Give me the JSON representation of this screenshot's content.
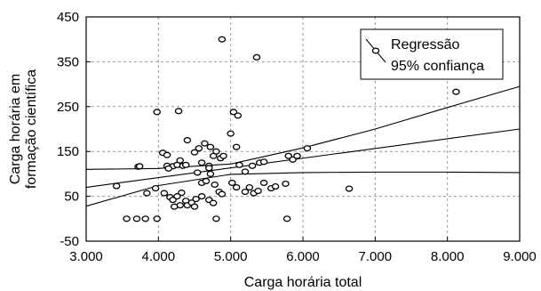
{
  "chart_data": {
    "type": "scatter",
    "xlabel": "Carga horária total",
    "ylabel_lines": [
      "Carga horária em",
      "formação científica"
    ],
    "xlim": [
      3000,
      9000
    ],
    "ylim": [
      -50,
      450
    ],
    "xticks": [
      3000,
      4000,
      5000,
      6000,
      7000,
      8000,
      9000
    ],
    "xtick_labels": [
      "3.000",
      "4.000",
      "5.000",
      "6.000",
      "7.000",
      "8.000",
      "9.000"
    ],
    "yticks": [
      -50,
      50,
      150,
      250,
      350,
      450
    ],
    "ytick_labels": [
      "-50",
      "50",
      "150",
      "250",
      "350",
      "450"
    ],
    "grid": true,
    "legend": {
      "position": "top-right",
      "entries": [
        "Regressão",
        "95% confiança"
      ]
    },
    "regression": {
      "x": [
        3000,
        9000
      ],
      "y": [
        70,
        200
      ]
    },
    "confidence_upper": {
      "x": [
        3000,
        4000,
        5000,
        6000,
        7000,
        8000,
        9000
      ],
      "y": [
        110,
        112,
        122,
        158,
        200,
        248,
        295
      ]
    },
    "confidence_lower": {
      "x": [
        3000,
        4000,
        5000,
        6000,
        7000,
        8000,
        9000
      ],
      "y": [
        28,
        74,
        99,
        103,
        104,
        104,
        103
      ]
    },
    "points": [
      [
        3700,
        0
      ],
      [
        3820,
        0
      ],
      [
        3980,
        0
      ],
      [
        3420,
        73
      ],
      [
        3560,
        0
      ],
      [
        3720,
        116
      ],
      [
        3740,
        117
      ],
      [
        3840,
        57
      ],
      [
        3960,
        68
      ],
      [
        3980,
        238
      ],
      [
        4280,
        240
      ],
      [
        4880,
        400
      ],
      [
        5360,
        360
      ],
      [
        5040,
        238
      ],
      [
        5100,
        230
      ],
      [
        5000,
        190
      ],
      [
        4060,
        147
      ],
      [
        4120,
        142
      ],
      [
        4120,
        118
      ],
      [
        4200,
        117
      ],
      [
        4260,
        120
      ],
      [
        4300,
        130
      ],
      [
        4340,
        118
      ],
      [
        4380,
        120
      ],
      [
        4400,
        175
      ],
      [
        4500,
        148
      ],
      [
        4560,
        157
      ],
      [
        4600,
        125
      ],
      [
        4640,
        168
      ],
      [
        4700,
        118
      ],
      [
        4720,
        160
      ],
      [
        4760,
        140
      ],
      [
        4800,
        150
      ],
      [
        4860,
        135
      ],
      [
        4900,
        140
      ],
      [
        5080,
        160
      ],
      [
        5120,
        120
      ],
      [
        5200,
        105
      ],
      [
        5300,
        118
      ],
      [
        5400,
        125
      ],
      [
        5460,
        127
      ],
      [
        4540,
        103
      ],
      [
        4600,
        80
      ],
      [
        4660,
        84
      ],
      [
        4720,
        100
      ],
      [
        4780,
        76
      ],
      [
        4840,
        60
      ],
      [
        4880,
        55
      ],
      [
        5020,
        80
      ],
      [
        5080,
        70
      ],
      [
        4080,
        57
      ],
      [
        4160,
        48
      ],
      [
        4200,
        42
      ],
      [
        4260,
        50
      ],
      [
        4320,
        58
      ],
      [
        4380,
        40
      ],
      [
        4400,
        30
      ],
      [
        4460,
        36
      ],
      [
        4520,
        44
      ],
      [
        4600,
        50
      ],
      [
        4700,
        42
      ],
      [
        4760,
        35
      ],
      [
        4300,
        30
      ],
      [
        4220,
        27
      ],
      [
        4500,
        27
      ],
      [
        5200,
        60
      ],
      [
        5260,
        70
      ],
      [
        5320,
        57
      ],
      [
        5380,
        62
      ],
      [
        5460,
        80
      ],
      [
        5560,
        68
      ],
      [
        5620,
        72
      ],
      [
        5760,
        78
      ],
      [
        5800,
        140
      ],
      [
        5860,
        132
      ],
      [
        5920,
        140
      ],
      [
        6060,
        157
      ],
      [
        4800,
        0
      ],
      [
        5780,
        0
      ],
      [
        6640,
        67
      ],
      [
        8120,
        283
      ],
      [
        4140,
        112
      ],
      [
        4700,
        113
      ]
    ]
  }
}
